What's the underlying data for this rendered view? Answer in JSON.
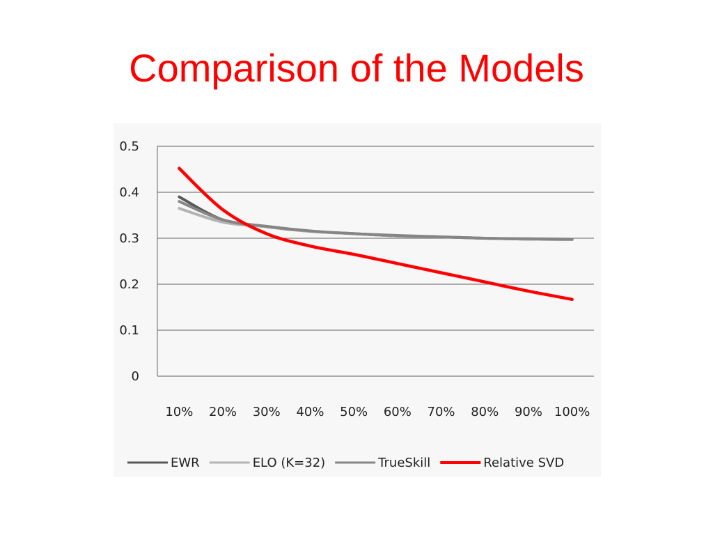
{
  "slide": {
    "title": "Comparison of the Models"
  },
  "colors": {
    "title": "#ff0000",
    "grid": "#7f7f7f",
    "EWR": "#595959",
    "ELO (K=32)": "#b3b3b3",
    "TrueSkill": "#858585",
    "Relative SVD": "#ff0000"
  },
  "chart_data": {
    "type": "line",
    "title": "",
    "xlabel": "",
    "ylabel": "",
    "categories": [
      "10%",
      "20%",
      "30%",
      "40%",
      "50%",
      "60%",
      "70%",
      "80%",
      "90%",
      "100%"
    ],
    "ylim": [
      0,
      0.5
    ],
    "yticks": [
      "0",
      "0.1",
      "0.2",
      "0.3",
      "0.4",
      "0.5"
    ],
    "grid": true,
    "legend_position": "bottom",
    "series": [
      {
        "name": "EWR",
        "values": [
          0.39,
          0.34,
          0.325,
          0.315,
          0.31,
          0.305,
          0.303,
          0.3,
          0.298,
          0.297
        ]
      },
      {
        "name": "ELO (K=32)",
        "values": [
          0.365,
          0.335,
          0.325,
          0.315,
          0.31,
          0.305,
          0.303,
          0.3,
          0.298,
          0.297
        ]
      },
      {
        "name": "TrueSkill",
        "values": [
          0.38,
          0.34,
          0.326,
          0.316,
          0.31,
          0.306,
          0.303,
          0.3,
          0.299,
          0.298
        ]
      },
      {
        "name": "Relative SVD",
        "values": [
          0.452,
          0.362,
          0.31,
          0.283,
          0.265,
          0.245,
          0.225,
          0.205,
          0.185,
          0.167
        ]
      }
    ]
  }
}
